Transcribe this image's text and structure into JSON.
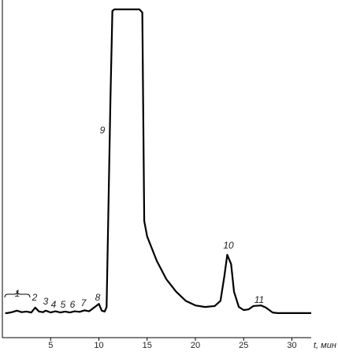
{
  "chart_data": {
    "type": "line",
    "x_label": "t, мин",
    "xlim": [
      0,
      32
    ],
    "ylim": [
      -8,
      100
    ],
    "xticks": [
      5,
      10,
      15,
      20,
      25,
      30
    ],
    "grid": false,
    "series": [
      {
        "color": "#000000",
        "x": [
          0.3,
          0.5,
          1,
          1.5,
          2,
          2.5,
          3,
          3.4,
          3.8,
          4.2,
          4.5,
          5,
          5.5,
          6,
          6.5,
          7,
          7.5,
          8,
          8.5,
          9,
          9.5,
          10,
          10.3,
          10.6,
          10.8,
          11.2,
          11.4,
          11.6,
          14.2,
          14.5,
          14.7,
          15,
          16,
          17,
          18,
          19,
          20,
          21,
          22,
          22.6,
          23,
          23.3,
          23.7,
          24,
          24.5,
          25,
          25.5,
          26,
          26.8,
          27.3,
          28,
          28.5,
          32
        ],
        "values": [
          0,
          0,
          0.3,
          0.8,
          0.3,
          0.5,
          0.2,
          1.8,
          0.5,
          0.3,
          0.8,
          0.2,
          0.6,
          0.2,
          0.5,
          0.2,
          0.6,
          0.4,
          0.9,
          0.6,
          1.8,
          3,
          0.8,
          0.5,
          2,
          70,
          98.5,
          99,
          99,
          98,
          30,
          25,
          17,
          11,
          7,
          4,
          2.5,
          2,
          2.3,
          4,
          12,
          19,
          16,
          7,
          2,
          1,
          1.2,
          2.3,
          2.5,
          1.8,
          0.2,
          0,
          0
        ]
      }
    ],
    "annotations": [
      "1",
      "2",
      "3",
      "4",
      "5",
      "6",
      "7",
      "8",
      "9",
      "10",
      "11"
    ]
  }
}
